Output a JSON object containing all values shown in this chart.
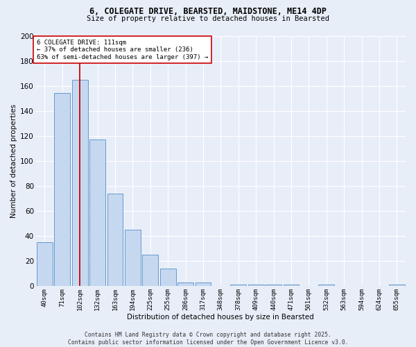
{
  "title": "6, COLEGATE DRIVE, BEARSTED, MAIDSTONE, ME14 4DP",
  "subtitle": "Size of property relative to detached houses in Bearsted",
  "xlabel": "Distribution of detached houses by size in Bearsted",
  "ylabel": "Number of detached properties",
  "categories": [
    "40sqm",
    "71sqm",
    "102sqm",
    "132sqm",
    "163sqm",
    "194sqm",
    "225sqm",
    "255sqm",
    "286sqm",
    "317sqm",
    "348sqm",
    "378sqm",
    "409sqm",
    "440sqm",
    "471sqm",
    "501sqm",
    "532sqm",
    "563sqm",
    "594sqm",
    "624sqm",
    "655sqm"
  ],
  "values": [
    35,
    154,
    165,
    117,
    74,
    45,
    25,
    14,
    3,
    3,
    0,
    1,
    1,
    1,
    1,
    0,
    1,
    0,
    0,
    0,
    1
  ],
  "bar_color": "#c5d8f0",
  "bar_edge_color": "#6699cc",
  "vline_x": 2,
  "vline_color": "#cc0000",
  "annotation_text": "6 COLEGATE DRIVE: 111sqm\n← 37% of detached houses are smaller (236)\n63% of semi-detached houses are larger (397) →",
  "annotation_box_color": "#ffffff",
  "annotation_box_edge": "#cc0000",
  "bg_color": "#e8eef8",
  "grid_color": "#ffffff",
  "footer_text": "Contains HM Land Registry data © Crown copyright and database right 2025.\nContains public sector information licensed under the Open Government Licence v3.0.",
  "ylim": [
    0,
    200
  ],
  "yticks": [
    0,
    20,
    40,
    60,
    80,
    100,
    120,
    140,
    160,
    180,
    200
  ]
}
